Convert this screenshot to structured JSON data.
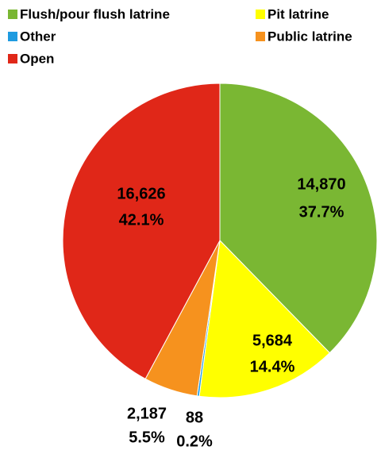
{
  "chart_data": {
    "type": "pie",
    "categories": [
      "Flush/pour flush latrine",
      "Pit latrine",
      "Other",
      "Public latrine",
      "Open"
    ],
    "values": [
      14870,
      5684,
      88,
      2187,
      16626
    ],
    "value_labels": [
      "14,870",
      "5,684",
      "88",
      "2,187",
      "16,626"
    ],
    "percent_labels": [
      "37.7%",
      "14.4%",
      "0.2%",
      "5.5%",
      "42.1%"
    ],
    "colors": [
      "#7ab733",
      "#ffff00",
      "#1e9be0",
      "#f6921e",
      "#e02718"
    ],
    "legend": "top"
  }
}
